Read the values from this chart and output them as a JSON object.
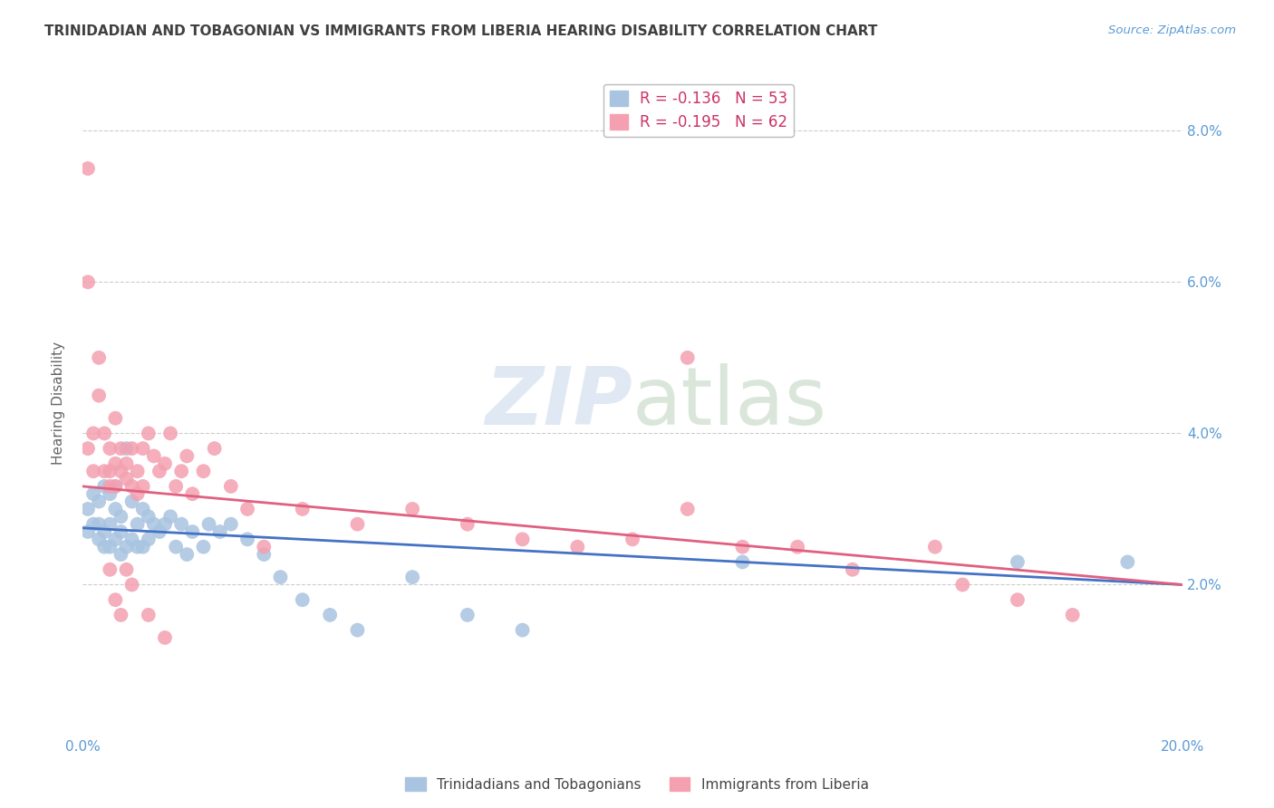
{
  "title": "TRINIDADIAN AND TOBAGONIAN VS IMMIGRANTS FROM LIBERIA HEARING DISABILITY CORRELATION CHART",
  "source": "Source: ZipAtlas.com",
  "ylabel": "Hearing Disability",
  "xmin": 0.0,
  "xmax": 0.2,
  "ymin": 0.0,
  "ymax": 0.088,
  "yticks": [
    0.0,
    0.02,
    0.04,
    0.06,
    0.08
  ],
  "ytick_labels": [
    "",
    "2.0%",
    "4.0%",
    "6.0%",
    "8.0%"
  ],
  "xticks": [
    0.0,
    0.05,
    0.1,
    0.15,
    0.2
  ],
  "xtick_labels": [
    "0.0%",
    "",
    "",
    "",
    "20.0%"
  ],
  "legend1_label": "R = -0.136   N = 53",
  "legend2_label": "R = -0.195   N = 62",
  "bottom_legend1": "Trinidadians and Tobagonians",
  "bottom_legend2": "Immigrants from Liberia",
  "color_blue": "#a8c4e0",
  "color_pink": "#f4a0b0",
  "line_blue": "#4472c4",
  "line_pink": "#e06080",
  "watermark_zip": "ZIP",
  "watermark_atlas": "atlas",
  "title_color": "#404040",
  "axis_color": "#5b9bd5",
  "scatter_blue_x": [
    0.001,
    0.001,
    0.002,
    0.002,
    0.003,
    0.003,
    0.003,
    0.004,
    0.004,
    0.004,
    0.005,
    0.005,
    0.005,
    0.006,
    0.006,
    0.006,
    0.007,
    0.007,
    0.007,
    0.008,
    0.008,
    0.009,
    0.009,
    0.01,
    0.01,
    0.011,
    0.011,
    0.012,
    0.012,
    0.013,
    0.014,
    0.015,
    0.016,
    0.017,
    0.018,
    0.019,
    0.02,
    0.022,
    0.023,
    0.025,
    0.027,
    0.03,
    0.033,
    0.036,
    0.04,
    0.045,
    0.05,
    0.06,
    0.07,
    0.08,
    0.12,
    0.17,
    0.19
  ],
  "scatter_blue_y": [
    0.03,
    0.027,
    0.032,
    0.028,
    0.031,
    0.028,
    0.026,
    0.033,
    0.027,
    0.025,
    0.032,
    0.028,
    0.025,
    0.033,
    0.03,
    0.026,
    0.029,
    0.027,
    0.024,
    0.038,
    0.025,
    0.031,
    0.026,
    0.028,
    0.025,
    0.03,
    0.025,
    0.029,
    0.026,
    0.028,
    0.027,
    0.028,
    0.029,
    0.025,
    0.028,
    0.024,
    0.027,
    0.025,
    0.028,
    0.027,
    0.028,
    0.026,
    0.024,
    0.021,
    0.018,
    0.016,
    0.014,
    0.021,
    0.016,
    0.014,
    0.023,
    0.023,
    0.023
  ],
  "scatter_pink_x": [
    0.001,
    0.001,
    0.001,
    0.002,
    0.002,
    0.003,
    0.003,
    0.004,
    0.004,
    0.005,
    0.005,
    0.005,
    0.006,
    0.006,
    0.006,
    0.007,
    0.007,
    0.008,
    0.008,
    0.009,
    0.009,
    0.01,
    0.01,
    0.011,
    0.011,
    0.012,
    0.013,
    0.014,
    0.015,
    0.016,
    0.017,
    0.018,
    0.019,
    0.02,
    0.022,
    0.024,
    0.027,
    0.03,
    0.033,
    0.04,
    0.05,
    0.06,
    0.07,
    0.08,
    0.09,
    0.1,
    0.11,
    0.11,
    0.12,
    0.13,
    0.14,
    0.155,
    0.16,
    0.17,
    0.18,
    0.005,
    0.006,
    0.007,
    0.008,
    0.009,
    0.012,
    0.015
  ],
  "scatter_pink_y": [
    0.075,
    0.06,
    0.038,
    0.035,
    0.04,
    0.05,
    0.045,
    0.035,
    0.04,
    0.035,
    0.038,
    0.033,
    0.036,
    0.042,
    0.033,
    0.038,
    0.035,
    0.036,
    0.034,
    0.038,
    0.033,
    0.035,
    0.032,
    0.038,
    0.033,
    0.04,
    0.037,
    0.035,
    0.036,
    0.04,
    0.033,
    0.035,
    0.037,
    0.032,
    0.035,
    0.038,
    0.033,
    0.03,
    0.025,
    0.03,
    0.028,
    0.03,
    0.028,
    0.026,
    0.025,
    0.026,
    0.03,
    0.05,
    0.025,
    0.025,
    0.022,
    0.025,
    0.02,
    0.018,
    0.016,
    0.022,
    0.018,
    0.016,
    0.022,
    0.02,
    0.016,
    0.013
  ]
}
